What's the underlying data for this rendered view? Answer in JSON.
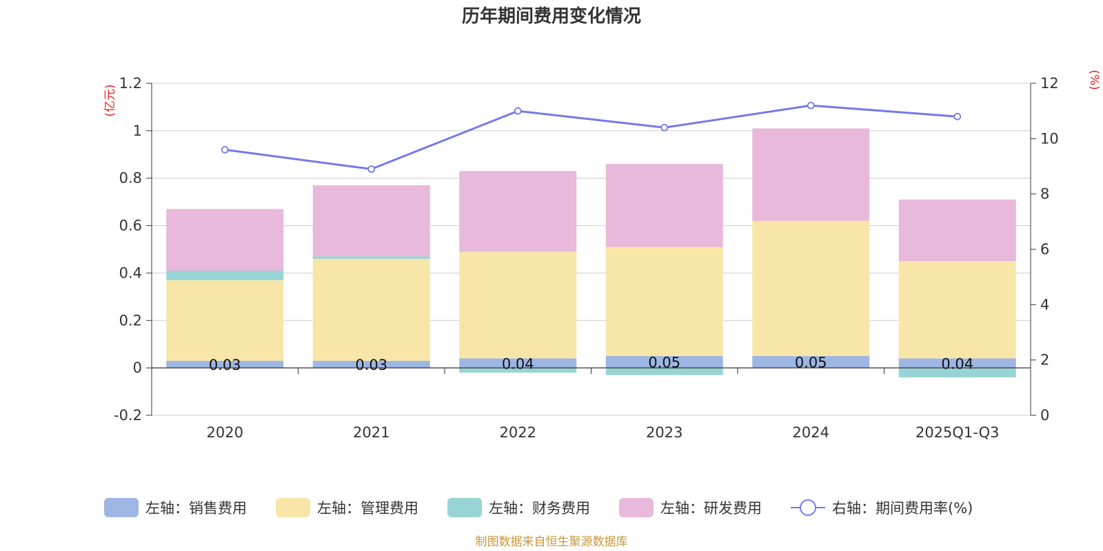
{
  "chart_data": {
    "type": "bar",
    "stacked": true,
    "title": "历年期间费用变化情况",
    "categories": [
      "2020",
      "2021",
      "2022",
      "2023",
      "2024",
      "2025Q1-Q3"
    ],
    "left_axis": {
      "unit": "(亿元)",
      "ylim": [
        -0.2,
        1.2
      ],
      "ticks": [
        -0.2,
        0,
        0.2,
        0.4,
        0.6,
        0.8,
        1,
        1.2
      ],
      "tick_labels": [
        "-0.2",
        "0",
        "0.2",
        "0.4",
        "0.6",
        "0.8",
        "1",
        "1.2"
      ]
    },
    "right_axis": {
      "unit": "(%)",
      "ylim": [
        0,
        12
      ],
      "ticks": [
        0,
        2,
        4,
        6,
        8,
        10,
        12
      ],
      "tick_labels": [
        "0",
        "2",
        "4",
        "6",
        "8",
        "10",
        "12"
      ]
    },
    "series": [
      {
        "name": "左轴：销售费用",
        "axis": "left",
        "color": "#9db6e3",
        "values": [
          0.03,
          0.03,
          0.04,
          0.05,
          0.05,
          0.04
        ],
        "labels": [
          "0.03",
          "0.03",
          "0.04",
          "0.05",
          "0.05",
          "0.04"
        ]
      },
      {
        "name": "左轴：管理费用",
        "axis": "left",
        "color": "#f8e6a8",
        "values": [
          0.34,
          0.43,
          0.45,
          0.46,
          0.57,
          0.41
        ]
      },
      {
        "name": "左轴：财务费用",
        "axis": "left",
        "color": "#98d4d6",
        "values": [
          0.04,
          0.01,
          -0.02,
          -0.03,
          0.0,
          -0.04
        ]
      },
      {
        "name": "左轴：研发费用",
        "axis": "left",
        "color": "#e8b9da",
        "values": [
          0.26,
          0.3,
          0.34,
          0.35,
          0.39,
          0.26
        ]
      },
      {
        "name": "右轴：期间费用率(%)",
        "axis": "right",
        "type": "line",
        "color": "#7479ea",
        "values": [
          9.6,
          8.9,
          11.0,
          10.4,
          11.2,
          10.8
        ]
      }
    ],
    "grid": true,
    "legend_position": "bottom"
  },
  "footer": {
    "source": "制图数据来自恒生聚源数据库"
  },
  "colors": {
    "title": "#333333",
    "axis_unit": "#e8201e",
    "source": "#c8973a",
    "grid": "#cccccc",
    "axis": "#333333"
  }
}
